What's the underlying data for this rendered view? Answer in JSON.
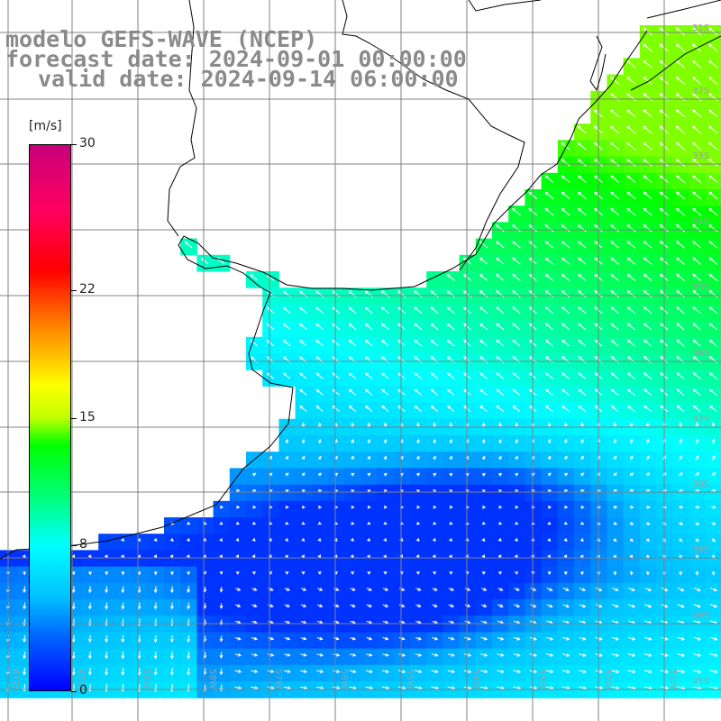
{
  "title": {
    "line1": "modelo GEFS-WAVE (NCEP)",
    "line2": "forecast date: 2024-09-01 00:00:00",
    "line3": "valid date: 2024-09-14 06:00:00"
  },
  "colorbar": {
    "unit": "[m/s]",
    "ticks": [
      {
        "value": 0,
        "label": "0"
      },
      {
        "value": 8,
        "label": "8"
      },
      {
        "value": 15,
        "label": "15"
      },
      {
        "value": 22,
        "label": "22"
      },
      {
        "value": 30,
        "label": "30"
      }
    ],
    "vmin": 0,
    "vmax": 30
  },
  "map": {
    "lon_range": [
      -62,
      -51
    ],
    "lat_range": [
      -41.7,
      -30
    ],
    "lon_labels": [
      "61W",
      "60W",
      "59W",
      "58W",
      "57W",
      "56W",
      "55W",
      "54W",
      "53W",
      "52W",
      "51W"
    ],
    "lat_labels": [
      "31S",
      "32S",
      "33S",
      "34S",
      "35S",
      "36S",
      "37S",
      "38S",
      "39S",
      "40S",
      "41S"
    ],
    "land_color": "#ffffff",
    "grid_color": "#808080",
    "coast_color": "#000000",
    "arrow_color": "#ffffff"
  }
}
